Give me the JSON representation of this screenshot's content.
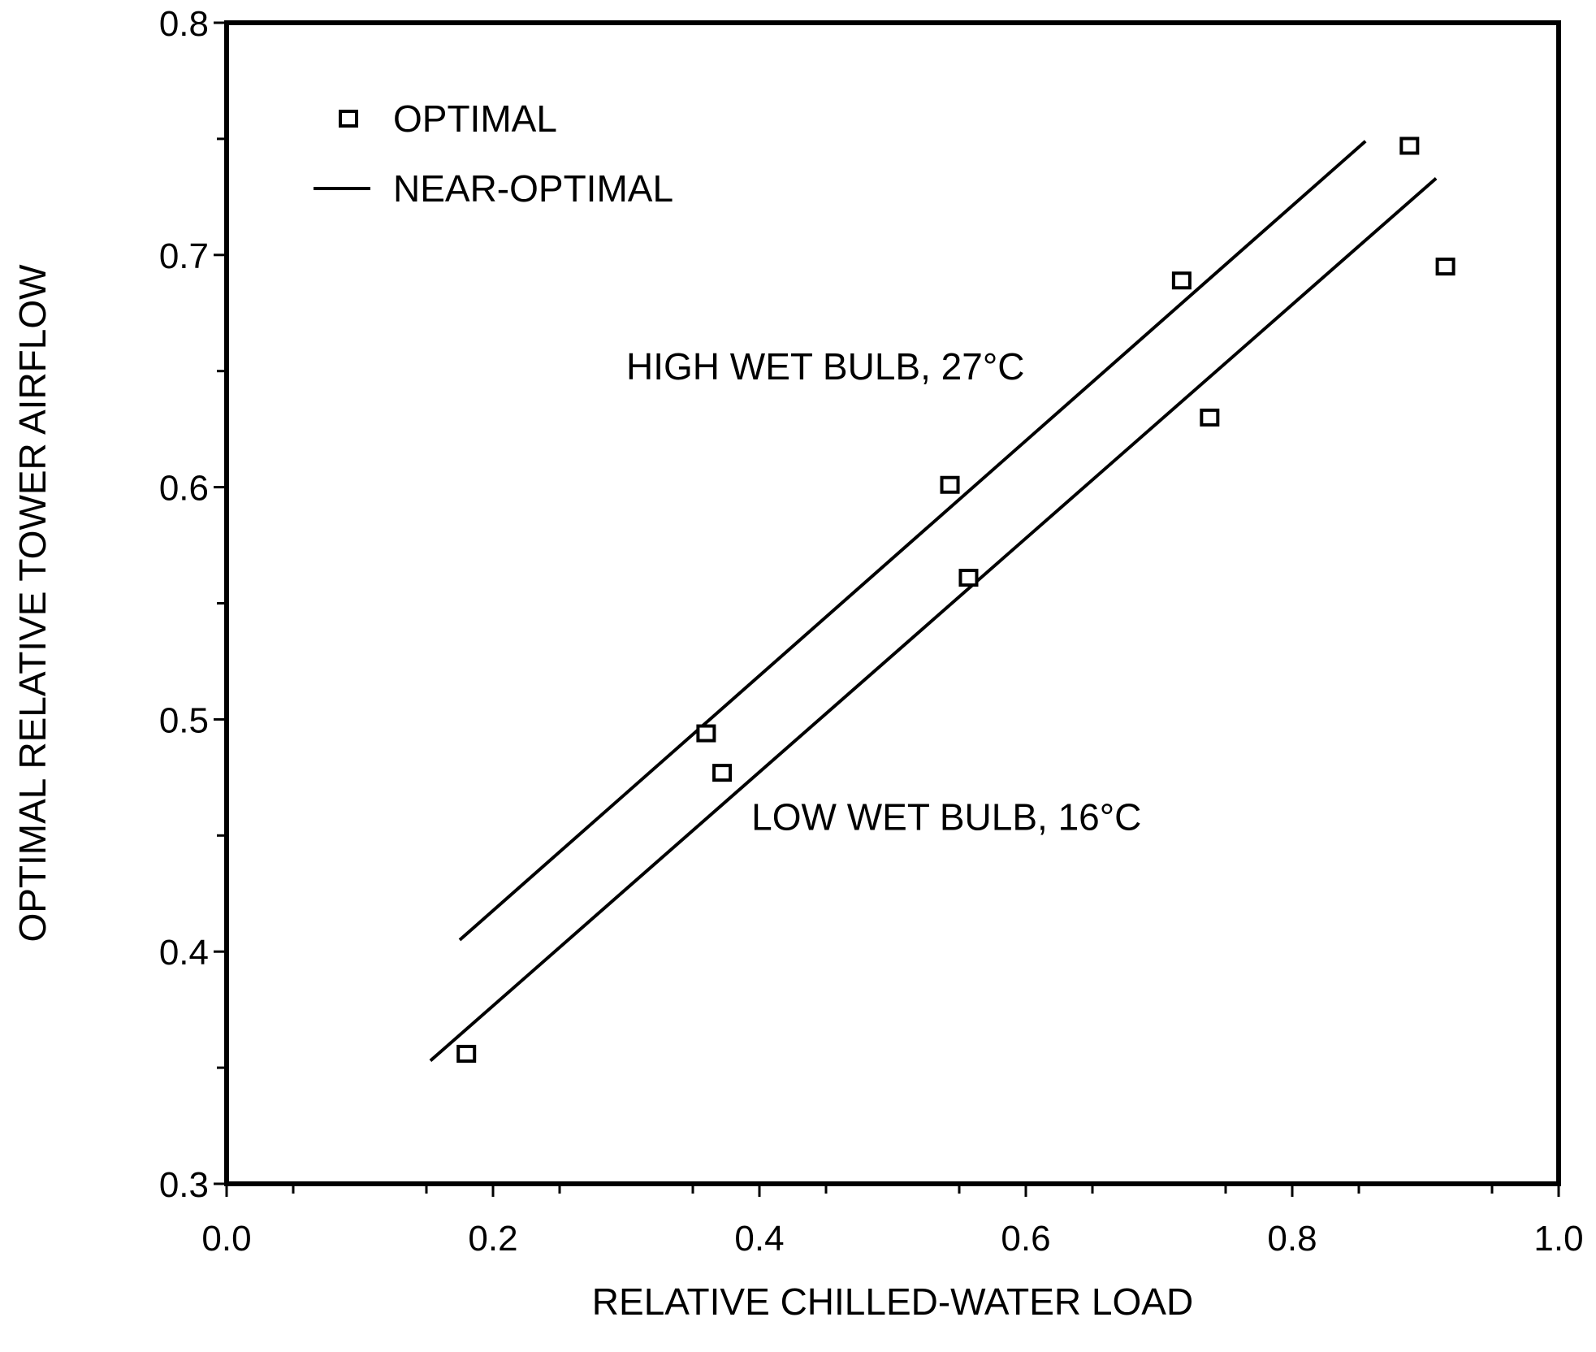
{
  "chart_data": {
    "type": "scatter",
    "xlabel": "RELATIVE CHILLED-WATER LOAD",
    "ylabel": "OPTIMAL RELATIVE TOWER AIRFLOW",
    "xlim": [
      0.0,
      1.0
    ],
    "ylim": [
      0.3,
      0.8
    ],
    "x_ticks": [
      "0.0",
      "0.2",
      "0.4",
      "0.6",
      "0.8",
      "1.0"
    ],
    "y_ticks": [
      "0.3",
      "0.4",
      "0.5",
      "0.6",
      "0.7",
      "0.8"
    ],
    "legend": {
      "position": "top-left",
      "items": [
        {
          "label": "OPTIMAL",
          "marker": "square"
        },
        {
          "label": "NEAR-OPTIMAL",
          "marker": "line"
        }
      ]
    },
    "series": [
      {
        "name": "OPTIMAL",
        "kind": "scatter",
        "marker": "square",
        "x": [
          0.18,
          0.36,
          0.372,
          0.543,
          0.557,
          0.717,
          0.738,
          0.888,
          0.915
        ],
        "y": [
          0.356,
          0.494,
          0.477,
          0.601,
          0.561,
          0.689,
          0.63,
          0.747,
          0.695
        ]
      },
      {
        "name": "NEAR-OPTIMAL",
        "kind": "line",
        "x": [
          0.175,
          0.855
        ],
        "y": [
          0.405,
          0.749
        ]
      },
      {
        "name": "NEAR-OPTIMAL",
        "kind": "line",
        "x": [
          0.153,
          0.908
        ],
        "y": [
          0.353,
          0.733
        ]
      }
    ],
    "annotations": [
      {
        "text": "HIGH WET BULB, 27°C",
        "x": 0.3,
        "y": 0.652
      },
      {
        "text": "LOW WET BULB, 16°C",
        "x": 0.394,
        "y": 0.458
      }
    ],
    "grid": false
  }
}
